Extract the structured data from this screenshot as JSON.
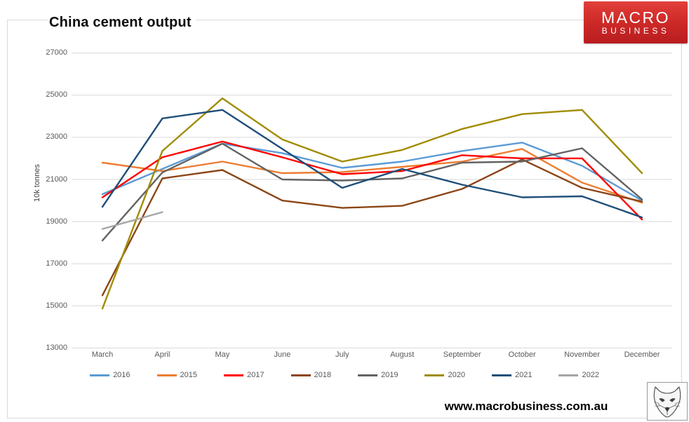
{
  "header": {
    "title": "China cement output",
    "logo": {
      "line1": "MACRO",
      "line2": "BUSINESS",
      "bg_color": "#C8262A",
      "text_color": "#FFFFFF"
    }
  },
  "footer": {
    "url": "www.macrobusiness.com.au",
    "fox_logo": "fox-sketch"
  },
  "colors": {
    "gridline": "#D9D9D9",
    "tick_text": "#595959",
    "chart_border": "#D9D9D9"
  },
  "chart_data": {
    "type": "line",
    "title": "China cement output",
    "xlabel": "",
    "ylabel": "10k tonnes",
    "ylim": [
      13000,
      27000
    ],
    "yticks": [
      27000,
      25000,
      23000,
      21000,
      19000,
      17000,
      15000,
      13000
    ],
    "grid": true,
    "legend_position": "bottom",
    "categories": [
      "March",
      "April",
      "May",
      "June",
      "July",
      "August",
      "September",
      "October",
      "November",
      "December"
    ],
    "series": [
      {
        "name": "2016",
        "color": "#5B9BD5",
        "values": [
          20300,
          21500,
          22700,
          22250,
          21550,
          21850,
          22350,
          22750,
          21650,
          20000
        ]
      },
      {
        "name": "2015",
        "color": "#ED7D31",
        "values": [
          21800,
          21400,
          21850,
          21300,
          21350,
          21600,
          21850,
          22450,
          20850,
          19900
        ]
      },
      {
        "name": "2017",
        "color": "#FF0000",
        "values": [
          20150,
          22050,
          22800,
          22050,
          21250,
          21400,
          22150,
          22000,
          22000,
          19100
        ]
      },
      {
        "name": "2018",
        "color": "#8C4617",
        "values": [
          15500,
          21050,
          21450,
          20000,
          19650,
          19750,
          20550,
          21950,
          20600,
          19950
        ]
      },
      {
        "name": "2019",
        "color": "#636363",
        "values": [
          18100,
          21330,
          22700,
          21000,
          20950,
          21050,
          21800,
          21850,
          22480,
          20050
        ]
      },
      {
        "name": "2020",
        "color": "#A08C00",
        "values": [
          14870,
          22350,
          24850,
          22900,
          21850,
          22400,
          23400,
          24100,
          24300,
          21300
        ]
      },
      {
        "name": "2021",
        "color": "#1F4E79",
        "values": [
          19700,
          23900,
          24300,
          22450,
          20600,
          21500,
          20750,
          20150,
          20200,
          19200
        ]
      },
      {
        "name": "2022",
        "color": "#A6A6A6",
        "values": [
          18650,
          19450,
          null,
          null,
          null,
          null,
          null,
          null,
          null,
          null
        ]
      }
    ]
  }
}
